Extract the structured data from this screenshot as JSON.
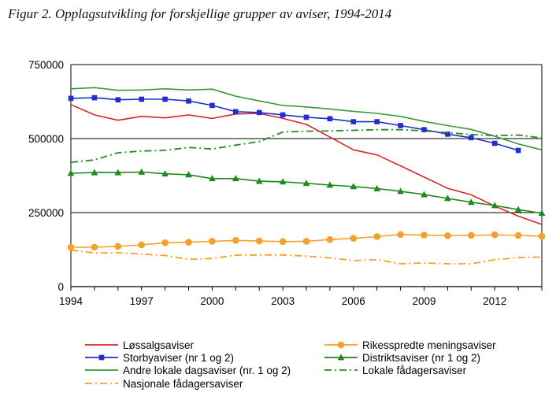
{
  "figure": {
    "title": "Figur 2. Opplagsutvikling for forskjellige grupper av aviser, 1994-2014"
  },
  "chart_data": {
    "type": "line",
    "title": "Figur 2. Opplagsutvikling for forskjellige grupper av aviser, 1994-2014",
    "xlabel": "",
    "ylabel": "",
    "xlim": [
      1994,
      2014
    ],
    "ylim": [
      0,
      750000
    ],
    "x_ticks": [
      "1994",
      "1997",
      "2000",
      "2003",
      "2006",
      "2009",
      "2012"
    ],
    "y_ticks": [
      "0",
      "250000",
      "500000",
      "750000"
    ],
    "grid": "horizontal",
    "legend_position": "bottom",
    "series": [
      {
        "name": "Løssalgsaviser",
        "color": "#d62728",
        "style": "solid",
        "marker": "none",
        "points": [
          [
            1994,
            615000
          ],
          [
            1995,
            580000
          ],
          [
            1996,
            562000
          ],
          [
            1997,
            575000
          ],
          [
            1998,
            570000
          ],
          [
            1999,
            580000
          ],
          [
            2000,
            568000
          ],
          [
            2001,
            583000
          ],
          [
            2002,
            585000
          ],
          [
            2003,
            568000
          ],
          [
            2004,
            548000
          ],
          [
            2005,
            505000
          ],
          [
            2006,
            462000
          ],
          [
            2007,
            445000
          ],
          [
            2008,
            408000
          ],
          [
            2009,
            370000
          ],
          [
            2010,
            332000
          ],
          [
            2011,
            310000
          ],
          [
            2012,
            272000
          ],
          [
            2013,
            238000
          ],
          [
            2014,
            210000
          ]
        ]
      },
      {
        "name": "Rikesspredte meningsaviser",
        "color": "#f5a02a",
        "style": "solid",
        "marker": "circle",
        "points": [
          [
            1994,
            133000
          ],
          [
            1995,
            133000
          ],
          [
            1996,
            136000
          ],
          [
            1997,
            141000
          ],
          [
            1998,
            148000
          ],
          [
            1999,
            150000
          ],
          [
            2000,
            153000
          ],
          [
            2001,
            156000
          ],
          [
            2002,
            154000
          ],
          [
            2003,
            152000
          ],
          [
            2004,
            153000
          ],
          [
            2005,
            159000
          ],
          [
            2006,
            163000
          ],
          [
            2007,
            169000
          ],
          [
            2008,
            176000
          ],
          [
            2009,
            174000
          ],
          [
            2010,
            172000
          ],
          [
            2011,
            173000
          ],
          [
            2012,
            175000
          ],
          [
            2013,
            173000
          ],
          [
            2014,
            170000
          ]
        ]
      },
      {
        "name": "Storbyaviser (nr 1 og 2)",
        "color": "#1f2fc8",
        "style": "solid",
        "marker": "square",
        "points": [
          [
            1994,
            636000
          ],
          [
            1995,
            638000
          ],
          [
            1996,
            631000
          ],
          [
            1997,
            633000
          ],
          [
            1998,
            633000
          ],
          [
            1999,
            627000
          ],
          [
            2000,
            612000
          ],
          [
            2001,
            591000
          ],
          [
            2002,
            588000
          ],
          [
            2003,
            580000
          ],
          [
            2004,
            572000
          ],
          [
            2005,
            567000
          ],
          [
            2006,
            557000
          ],
          [
            2007,
            557000
          ],
          [
            2008,
            544000
          ],
          [
            2009,
            530000
          ],
          [
            2010,
            515000
          ],
          [
            2011,
            503000
          ],
          [
            2012,
            484000
          ],
          [
            2013,
            460000
          ]
        ]
      },
      {
        "name": "Distriktsaviser (nr 1 og 2)",
        "color": "#1e8a1e",
        "style": "solid",
        "marker": "triangle",
        "points": [
          [
            1994,
            383000
          ],
          [
            1995,
            385000
          ],
          [
            1996,
            385000
          ],
          [
            1997,
            387000
          ],
          [
            1998,
            381000
          ],
          [
            1999,
            378000
          ],
          [
            2000,
            365000
          ],
          [
            2001,
            365000
          ],
          [
            2002,
            356000
          ],
          [
            2003,
            354000
          ],
          [
            2004,
            349000
          ],
          [
            2005,
            343000
          ],
          [
            2006,
            338000
          ],
          [
            2007,
            331000
          ],
          [
            2008,
            322000
          ],
          [
            2009,
            311000
          ],
          [
            2010,
            298000
          ],
          [
            2011,
            285000
          ],
          [
            2012,
            274000
          ],
          [
            2013,
            260000
          ],
          [
            2014,
            248000
          ]
        ]
      },
      {
        "name": "Andre lokale dagsaviser (nr. 1 og 2)",
        "color": "#3a9a3a",
        "style": "solid",
        "marker": "none",
        "points": [
          [
            1994,
            668000
          ],
          [
            1995,
            672000
          ],
          [
            1996,
            663000
          ],
          [
            1997,
            664000
          ],
          [
            1998,
            668000
          ],
          [
            1999,
            664000
          ],
          [
            2000,
            667000
          ],
          [
            2001,
            643000
          ],
          [
            2002,
            627000
          ],
          [
            2003,
            612000
          ],
          [
            2004,
            607000
          ],
          [
            2005,
            600000
          ],
          [
            2006,
            592000
          ],
          [
            2007,
            585000
          ],
          [
            2008,
            575000
          ],
          [
            2009,
            558000
          ],
          [
            2010,
            544000
          ],
          [
            2011,
            531000
          ],
          [
            2012,
            508000
          ],
          [
            2013,
            482000
          ],
          [
            2014,
            462000
          ]
        ]
      },
      {
        "name": "Lokale fådagersaviser",
        "color": "#2a8a2a",
        "style": "dashdot",
        "marker": "none",
        "points": [
          [
            1994,
            420000
          ],
          [
            1995,
            428000
          ],
          [
            1996,
            452000
          ],
          [
            1997,
            458000
          ],
          [
            1998,
            460000
          ],
          [
            1999,
            470000
          ],
          [
            2000,
            465000
          ],
          [
            2001,
            478000
          ],
          [
            2002,
            490000
          ],
          [
            2003,
            522000
          ],
          [
            2004,
            525000
          ],
          [
            2005,
            526000
          ],
          [
            2006,
            528000
          ],
          [
            2007,
            530000
          ],
          [
            2008,
            530000
          ],
          [
            2009,
            526000
          ],
          [
            2010,
            520000
          ],
          [
            2011,
            514000
          ],
          [
            2012,
            510000
          ],
          [
            2013,
            512000
          ],
          [
            2014,
            502000
          ]
        ]
      },
      {
        "name": "Nasjonale fådagersaviser",
        "color": "#f5a02a",
        "style": "dashdot",
        "marker": "none",
        "points": [
          [
            1994,
            123000
          ],
          [
            1995,
            114000
          ],
          [
            1996,
            114000
          ],
          [
            1997,
            110000
          ],
          [
            1998,
            105000
          ],
          [
            1999,
            92000
          ],
          [
            2000,
            95000
          ],
          [
            2001,
            106000
          ],
          [
            2002,
            107000
          ],
          [
            2003,
            107000
          ],
          [
            2004,
            103000
          ],
          [
            2005,
            97000
          ],
          [
            2006,
            88000
          ],
          [
            2007,
            91000
          ],
          [
            2008,
            77000
          ],
          [
            2009,
            80000
          ],
          [
            2010,
            77000
          ],
          [
            2011,
            77000
          ],
          [
            2012,
            91000
          ],
          [
            2013,
            98000
          ],
          [
            2014,
            100000
          ]
        ]
      }
    ],
    "legend_layout": [
      {
        "series": 0,
        "col": 0,
        "row": 0
      },
      {
        "series": 1,
        "col": 1,
        "row": 0
      },
      {
        "series": 2,
        "col": 0,
        "row": 1
      },
      {
        "series": 3,
        "col": 1,
        "row": 1
      },
      {
        "series": 4,
        "col": 0,
        "row": 2
      },
      {
        "series": 5,
        "col": 1,
        "row": 2
      },
      {
        "series": 6,
        "col": 0,
        "row": 3
      }
    ]
  }
}
